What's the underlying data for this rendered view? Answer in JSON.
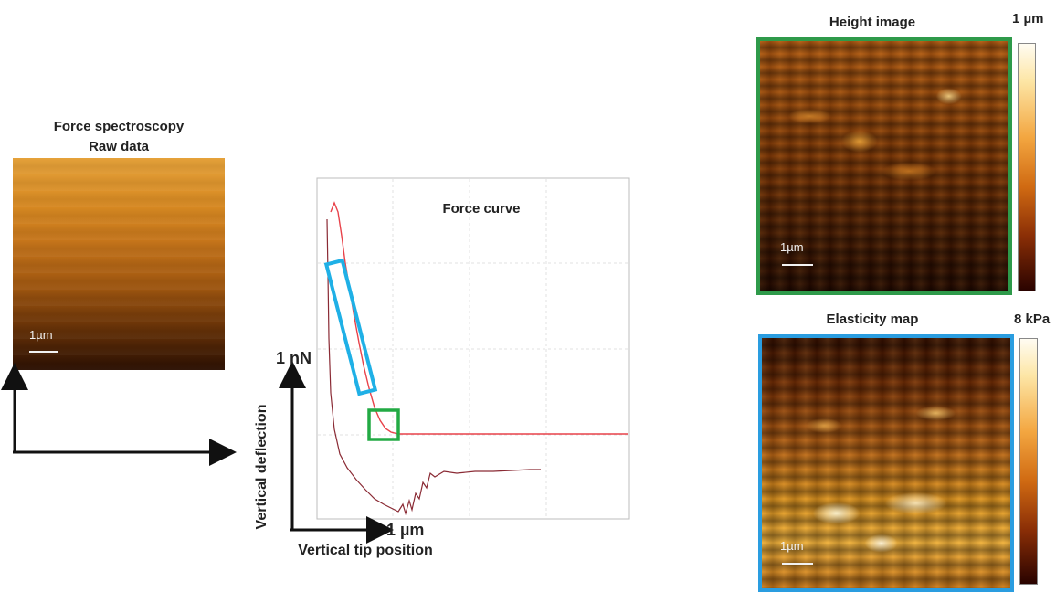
{
  "raw_panel": {
    "title_line1": "Force spectroscopy",
    "title_line2": "Raw data",
    "scale_label": "1µm"
  },
  "force_curve": {
    "title": "Force curve",
    "y_unit_label": "1 nN",
    "x_unit_label": "1 µm",
    "y_axis_title": "Vertical deflection",
    "x_axis_title": "Vertical tip position",
    "highlight_colors": {
      "fit_region": "#1fb0e6",
      "contact_point": "#22aa44"
    }
  },
  "height_panel": {
    "title": "Height image",
    "scale_max": "1 µm",
    "scale_label": "1µm",
    "frame_color": "#2e9a4a"
  },
  "elasticity_panel": {
    "title": "Elasticity map",
    "scale_max": "8 kPa",
    "scale_label": "1µm",
    "frame_color": "#2a9de0"
  }
}
